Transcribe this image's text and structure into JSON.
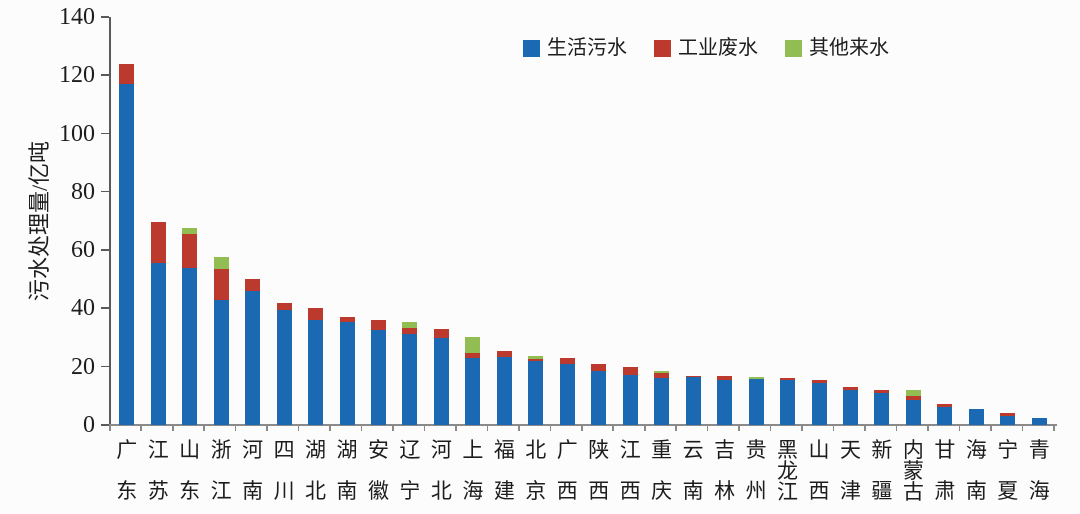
{
  "chart_data": {
    "type": "bar",
    "stacked": true,
    "title": "",
    "ylabel": "污水处理量/亿吨",
    "xlabel": "",
    "ylim": [
      0,
      140
    ],
    "yticks": [
      0,
      20,
      40,
      60,
      80,
      100,
      120,
      140
    ],
    "grid": false,
    "legend_position": "top-center",
    "categories": [
      "广东",
      "江苏",
      "山东",
      "浙江",
      "河南",
      "四川",
      "湖北",
      "湖南",
      "安徽",
      "辽宁",
      "河北",
      "上海",
      "福建",
      "北京",
      "广西",
      "陕西",
      "江西",
      "重庆",
      "云南",
      "吉林",
      "贵州",
      "黑龙江",
      "山西",
      "天津",
      "新疆",
      "内蒙古",
      "甘肃",
      "海南",
      "宁夏",
      "青海"
    ],
    "series": [
      {
        "name": "生活污水",
        "color": "#1a69b2",
        "values": [
          117,
          55.5,
          54,
          43,
          46,
          39.5,
          36,
          35.5,
          32.5,
          31.2,
          29.7,
          23,
          23.5,
          22,
          21,
          18.5,
          17,
          16,
          16.5,
          15.6,
          15.9,
          15.5,
          14.5,
          12,
          11,
          8.5,
          6.3,
          5.4,
          3.2,
          2.3
        ]
      },
      {
        "name": "工业废水",
        "color": "#bc3a2d",
        "values": [
          7,
          14,
          11.5,
          10.5,
          4,
          2.5,
          4,
          1.7,
          3.5,
          2,
          3.1,
          1.8,
          2,
          0.8,
          2,
          2.5,
          3,
          2,
          0.3,
          1.2,
          0,
          0.5,
          1,
          1,
          1,
          1.5,
          0.8,
          0,
          0.8,
          0
        ]
      },
      {
        "name": "其他来水",
        "color": "#92bd52",
        "values": [
          0,
          0,
          2,
          4,
          0,
          0,
          0,
          0,
          0,
          2.3,
          0,
          5.5,
          0,
          0.9,
          0,
          0,
          0,
          0.5,
          0,
          0,
          0.4,
          0,
          0,
          0,
          0,
          2,
          0,
          0,
          0,
          0
        ]
      }
    ]
  },
  "colors": {
    "domestic_sewage": "#1a69b2",
    "industrial_wastewater": "#bc3a2d",
    "other_inflow": "#92bd52",
    "axis": "#5a5a5a",
    "baseline": "#8a8a8a",
    "text": "#1d1d1d",
    "background": "#fcfcfc"
  }
}
